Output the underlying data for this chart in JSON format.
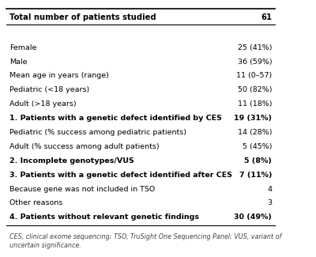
{
  "rows": [
    {
      "label": "Total number of patients studied",
      "value": "61",
      "bold": true
    },
    {
      "label": "",
      "value": "",
      "bold": false
    },
    {
      "label": "Female",
      "value": "25 (41%)",
      "bold": false
    },
    {
      "label": "Male",
      "value": "36 (59%)",
      "bold": false
    },
    {
      "label": "Mean age in years (range)",
      "value": "11 (0–57)",
      "bold": false
    },
    {
      "label": "Pediatric (<18 years)",
      "value": "50 (82%)",
      "bold": false
    },
    {
      "label": "Adult (>18 years)",
      "value": "11 (18%)",
      "bold": false
    },
    {
      "label": "1. Patients with a genetic defect identified by CES",
      "value": "19 (31%)",
      "bold": true
    },
    {
      "label": "Pediatric (% success among pediatric patients)",
      "value": "14 (28%)",
      "bold": false
    },
    {
      "label": "Adult (% success among adult patients)",
      "value": "5 (45%)",
      "bold": false
    },
    {
      "label": "2. Incomplete genotypes/VUS",
      "value": "5 (8%)",
      "bold": true
    },
    {
      "label": "3. Patients with a genetic defect identified after CES",
      "value": "7 (11%)",
      "bold": true
    },
    {
      "label": "Because gene was not included in TSO",
      "value": "4",
      "bold": false
    },
    {
      "label": "Other reasons",
      "value": "3",
      "bold": false
    },
    {
      "label": "4. Patients without relevant genetic findings",
      "value": "30 (49%)",
      "bold": true
    }
  ],
  "footnote": "CES, clinical exome sequencing; TSO, TruSight One Sequencing Panel; VUS, variant of\nuncertain significance.",
  "bg_color": "#ffffff",
  "text_color": "#000000",
  "footnote_color": "#444444",
  "header_fs": 7.2,
  "body_fs": 6.8,
  "footnote_fs": 5.8
}
